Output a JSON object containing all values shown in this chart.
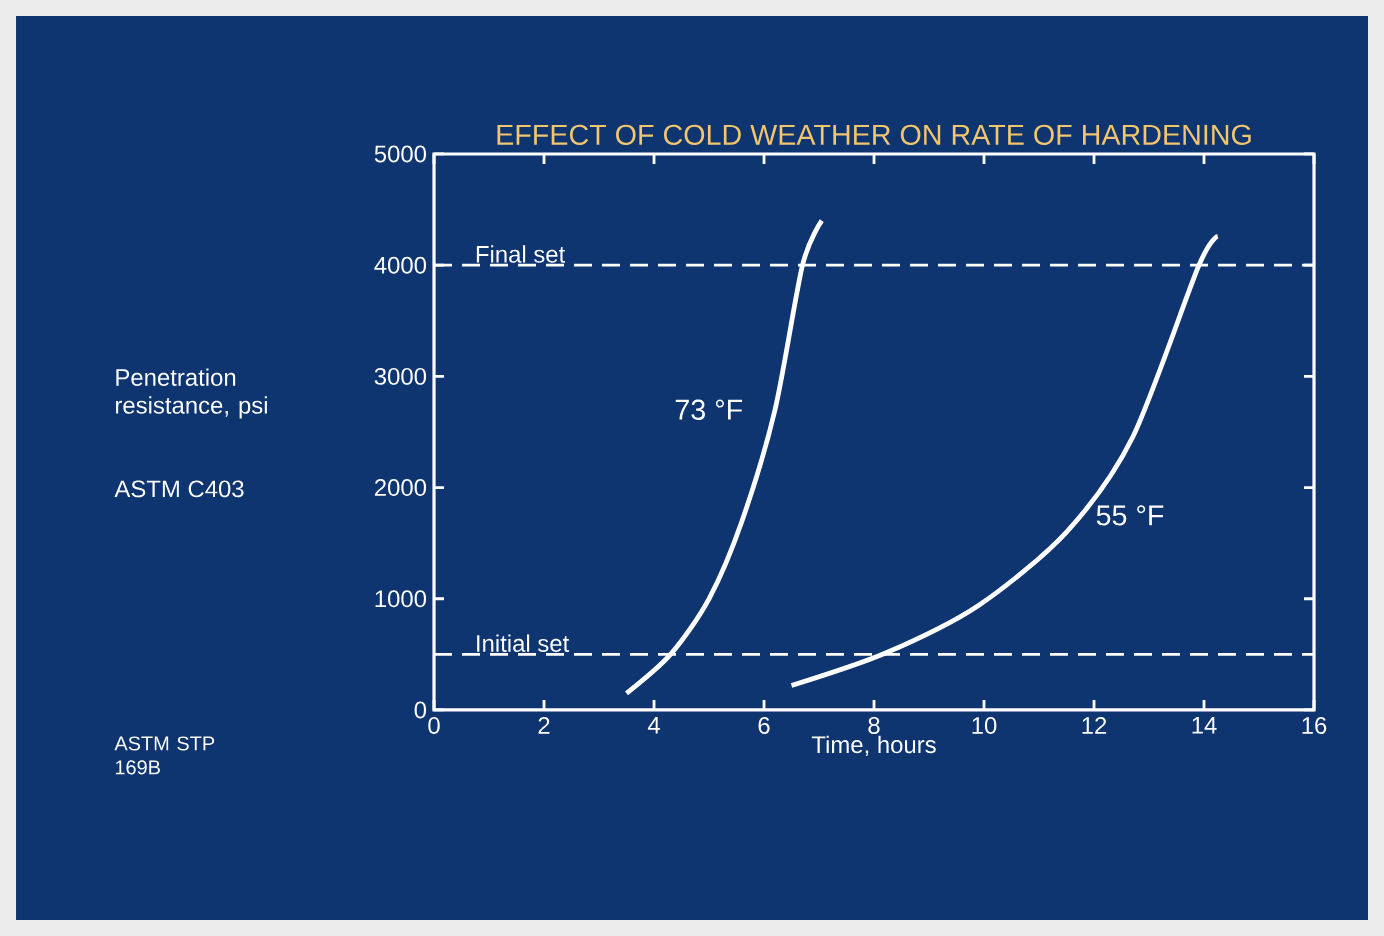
{
  "chart_data": {
    "type": "line",
    "title": "EFFECT OF COLD WEATHER ON RATE OF HARDENING",
    "xlabel": "Time, hours",
    "ylabel": "Penetration resistance, psi",
    "xlim": [
      0,
      16
    ],
    "ylim": [
      0,
      5000
    ],
    "xticks": [
      0,
      2,
      4,
      6,
      8,
      10,
      12,
      14,
      16
    ],
    "yticks": [
      0,
      1000,
      2000,
      3000,
      4000,
      5000
    ],
    "grid": false,
    "legend": false,
    "marker": "none",
    "line_style": "solid",
    "series": [
      {
        "name": "73 °F",
        "color": "#ffffff",
        "x": [
          3.5,
          4.3,
          5.0,
          5.6,
          6.2,
          6.7,
          7.05
        ],
        "values": [
          150,
          500,
          1000,
          1700,
          2700,
          4000,
          4400
        ]
      },
      {
        "name": "55 °F",
        "color": "#ffffff",
        "x": [
          6.5,
          8.2,
          9.9,
          11.5,
          12.7,
          13.9,
          14.25
        ],
        "values": [
          220,
          510,
          940,
          1600,
          2450,
          3990,
          4260
        ]
      }
    ],
    "ref_lines": [
      {
        "axis": "y",
        "value": 4000,
        "label": "Final set",
        "line_style": "dashed",
        "color": "#ffffff"
      },
      {
        "axis": "y",
        "value": 500,
        "label": "Initial set",
        "line_style": "dashed",
        "color": "#ffffff"
      }
    ],
    "annotations": [
      "ASTM C403",
      "ASTM STP 169B"
    ]
  }
}
